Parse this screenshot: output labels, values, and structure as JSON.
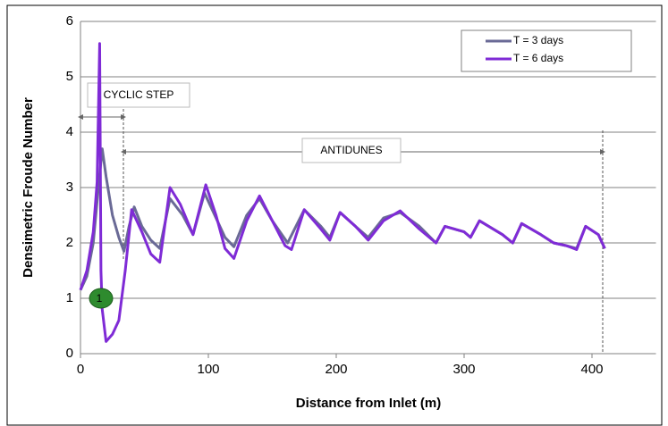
{
  "chart_data": {
    "type": "line",
    "xlabel": "Distance from Inlet (m)",
    "ylabel": "Densimetric Froude Number",
    "xlim": [
      0,
      450
    ],
    "xticks": [
      0,
      100,
      200,
      300,
      400
    ],
    "ylim": [
      0,
      6
    ],
    "yticks": [
      0,
      1,
      2,
      3,
      4,
      5,
      6
    ],
    "grid": true,
    "legend": "upper right",
    "series": [
      {
        "name": "T = 3 days",
        "color": "#6a6a96",
        "x": [
          0,
          5,
          10,
          14,
          17,
          20,
          25,
          30,
          34,
          38,
          42,
          48,
          55,
          62,
          70,
          80,
          88,
          97,
          105,
          113,
          120,
          130,
          140,
          150,
          162,
          175,
          188,
          195,
          203,
          215,
          225,
          237,
          250,
          265,
          278,
          285,
          300,
          305,
          312,
          330,
          338,
          345,
          360,
          370,
          380,
          388,
          395,
          405,
          410
        ],
        "values": [
          1.15,
          1.4,
          2.0,
          3.0,
          3.7,
          3.2,
          2.5,
          2.1,
          1.85,
          2.3,
          2.65,
          2.3,
          2.05,
          1.9,
          2.8,
          2.5,
          2.15,
          2.9,
          2.5,
          2.1,
          1.93,
          2.5,
          2.8,
          2.4,
          2.0,
          2.6,
          2.3,
          2.1,
          2.55,
          2.3,
          2.1,
          2.45,
          2.55,
          2.3,
          2.0,
          2.3,
          2.2,
          2.1,
          2.4,
          2.15,
          2.0,
          2.35,
          2.15,
          2.0,
          1.95,
          1.9,
          2.3,
          2.15,
          1.9
        ]
      },
      {
        "name": "T = 6 days",
        "color": "#7f2bd6",
        "x": [
          0,
          5,
          10,
          13,
          15,
          16,
          17,
          20,
          25,
          30,
          35,
          40,
          48,
          55,
          62,
          70,
          78,
          88,
          98,
          106,
          113,
          120,
          130,
          140,
          150,
          160,
          165,
          175,
          188,
          195,
          203,
          215,
          225,
          237,
          250,
          265,
          278,
          285,
          300,
          305,
          312,
          330,
          338,
          345,
          360,
          370,
          380,
          388,
          395,
          405,
          410
        ],
        "values": [
          1.15,
          1.5,
          2.2,
          3.1,
          5.6,
          1.5,
          0.8,
          0.22,
          0.35,
          0.6,
          1.5,
          2.6,
          2.2,
          1.8,
          1.65,
          3.0,
          2.7,
          2.15,
          3.05,
          2.5,
          1.9,
          1.72,
          2.4,
          2.85,
          2.4,
          1.95,
          1.88,
          2.6,
          2.25,
          2.05,
          2.55,
          2.3,
          2.05,
          2.4,
          2.58,
          2.25,
          2.0,
          2.3,
          2.2,
          2.1,
          2.4,
          2.15,
          2.0,
          2.35,
          2.15,
          2.0,
          1.95,
          1.88,
          2.3,
          2.15,
          1.9
        ]
      }
    ],
    "annotations": [
      {
        "text": "CYCLIC STEP"
      },
      {
        "text": "ANTIDUNES"
      },
      {
        "text": "1"
      }
    ]
  }
}
